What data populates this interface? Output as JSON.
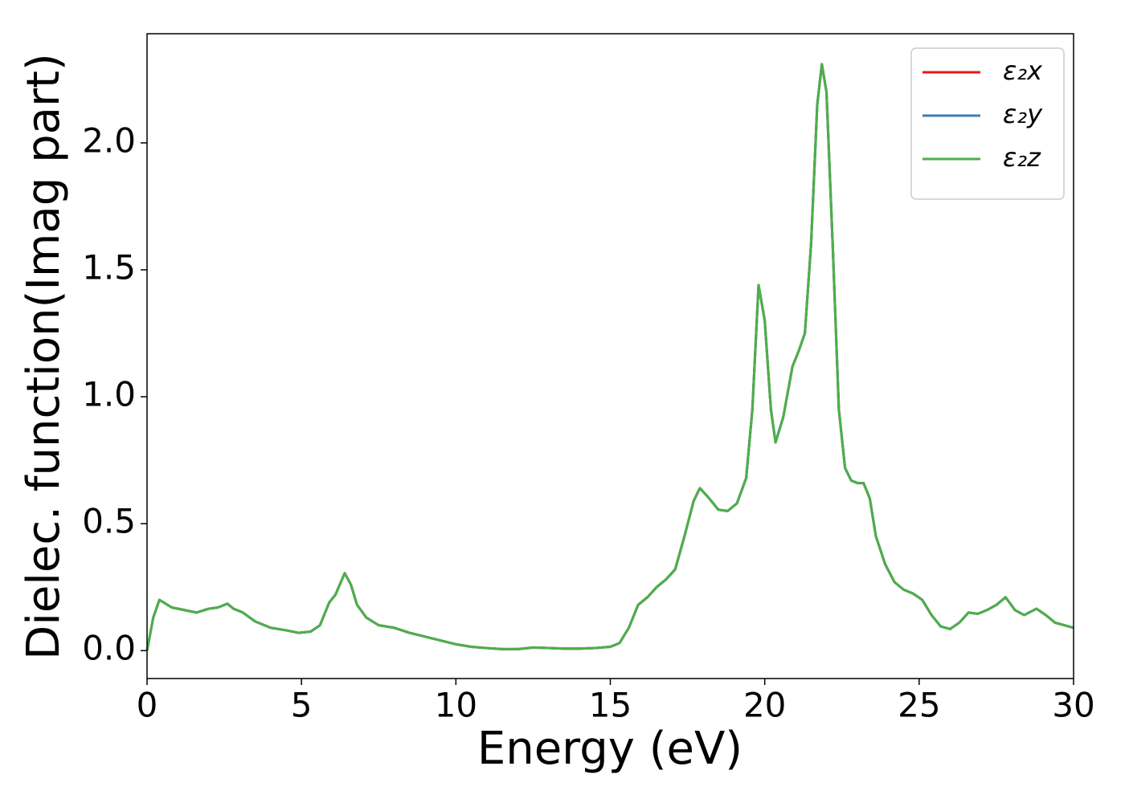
{
  "chart_data": {
    "type": "line",
    "xlabel": "Energy (eV)",
    "ylabel": "Dielec. function(Imag part)",
    "x": [
      0,
      0.2,
      0.4,
      0.6,
      0.8,
      1.2,
      1.6,
      2.0,
      2.3,
      2.6,
      2.8,
      3.1,
      3.5,
      4.0,
      4.5,
      4.9,
      5.3,
      5.6,
      5.9,
      6.1,
      6.4,
      6.6,
      6.8,
      7.1,
      7.5,
      8.0,
      8.5,
      9.0,
      9.5,
      10.0,
      10.5,
      11.0,
      11.5,
      12.0,
      12.5,
      13.0,
      13.5,
      14.0,
      14.5,
      15.0,
      15.3,
      15.6,
      15.9,
      16.2,
      16.5,
      16.8,
      17.1,
      17.4,
      17.7,
      17.9,
      18.2,
      18.5,
      18.8,
      19.1,
      19.4,
      19.6,
      19.8,
      20.0,
      20.2,
      20.35,
      20.6,
      20.9,
      21.1,
      21.3,
      21.5,
      21.7,
      21.85,
      22.0,
      22.2,
      22.4,
      22.6,
      22.8,
      23.0,
      23.2,
      23.4,
      23.6,
      23.9,
      24.2,
      24.5,
      24.8,
      25.1,
      25.4,
      25.7,
      26.0,
      26.3,
      26.6,
      26.9,
      27.2,
      27.5,
      27.8,
      28.1,
      28.4,
      28.8,
      29.1,
      29.4,
      29.7,
      30.0
    ],
    "series": [
      {
        "name": "ε₂x",
        "color": "#e41a1c",
        "values": [
          0.0,
          0.13,
          0.2,
          0.185,
          0.17,
          0.16,
          0.15,
          0.165,
          0.17,
          0.185,
          0.165,
          0.15,
          0.115,
          0.09,
          0.08,
          0.07,
          0.075,
          0.1,
          0.19,
          0.22,
          0.305,
          0.26,
          0.18,
          0.13,
          0.1,
          0.09,
          0.07,
          0.055,
          0.04,
          0.025,
          0.015,
          0.01,
          0.006,
          0.006,
          0.012,
          0.01,
          0.008,
          0.008,
          0.01,
          0.015,
          0.03,
          0.09,
          0.18,
          0.21,
          0.25,
          0.28,
          0.32,
          0.45,
          0.59,
          0.64,
          0.6,
          0.555,
          0.55,
          0.58,
          0.68,
          0.95,
          1.44,
          1.3,
          0.95,
          0.82,
          0.92,
          1.12,
          1.18,
          1.25,
          1.6,
          2.15,
          2.31,
          2.2,
          1.6,
          0.95,
          0.72,
          0.67,
          0.66,
          0.66,
          0.6,
          0.45,
          0.34,
          0.27,
          0.24,
          0.225,
          0.2,
          0.14,
          0.095,
          0.085,
          0.11,
          0.15,
          0.145,
          0.16,
          0.18,
          0.21,
          0.16,
          0.14,
          0.165,
          0.14,
          0.11,
          0.1,
          0.09
        ]
      },
      {
        "name": "ε₂y",
        "color": "#377eb8",
        "values": [
          0.0,
          0.13,
          0.2,
          0.185,
          0.17,
          0.16,
          0.15,
          0.165,
          0.17,
          0.185,
          0.165,
          0.15,
          0.115,
          0.09,
          0.08,
          0.07,
          0.075,
          0.1,
          0.19,
          0.22,
          0.305,
          0.26,
          0.18,
          0.13,
          0.1,
          0.09,
          0.07,
          0.055,
          0.04,
          0.025,
          0.015,
          0.01,
          0.006,
          0.006,
          0.012,
          0.01,
          0.008,
          0.008,
          0.01,
          0.015,
          0.03,
          0.09,
          0.18,
          0.21,
          0.25,
          0.28,
          0.32,
          0.45,
          0.59,
          0.64,
          0.6,
          0.555,
          0.55,
          0.58,
          0.68,
          0.95,
          1.44,
          1.3,
          0.95,
          0.82,
          0.92,
          1.12,
          1.18,
          1.25,
          1.6,
          2.15,
          2.31,
          2.2,
          1.6,
          0.95,
          0.72,
          0.67,
          0.66,
          0.66,
          0.6,
          0.45,
          0.34,
          0.27,
          0.24,
          0.225,
          0.2,
          0.14,
          0.095,
          0.085,
          0.11,
          0.15,
          0.145,
          0.16,
          0.18,
          0.21,
          0.16,
          0.14,
          0.165,
          0.14,
          0.11,
          0.1,
          0.09
        ]
      },
      {
        "name": "ε₂z",
        "color": "#4daf4a",
        "values": [
          0.0,
          0.13,
          0.2,
          0.185,
          0.17,
          0.16,
          0.15,
          0.165,
          0.17,
          0.185,
          0.165,
          0.15,
          0.115,
          0.09,
          0.08,
          0.07,
          0.075,
          0.1,
          0.19,
          0.22,
          0.305,
          0.26,
          0.18,
          0.13,
          0.1,
          0.09,
          0.07,
          0.055,
          0.04,
          0.025,
          0.015,
          0.01,
          0.006,
          0.006,
          0.012,
          0.01,
          0.008,
          0.008,
          0.01,
          0.015,
          0.03,
          0.09,
          0.18,
          0.21,
          0.25,
          0.28,
          0.32,
          0.45,
          0.59,
          0.64,
          0.6,
          0.555,
          0.55,
          0.58,
          0.68,
          0.95,
          1.44,
          1.3,
          0.95,
          0.82,
          0.92,
          1.12,
          1.18,
          1.25,
          1.6,
          2.15,
          2.31,
          2.2,
          1.6,
          0.95,
          0.72,
          0.67,
          0.66,
          0.66,
          0.6,
          0.45,
          0.34,
          0.27,
          0.24,
          0.225,
          0.2,
          0.14,
          0.095,
          0.085,
          0.11,
          0.15,
          0.145,
          0.16,
          0.18,
          0.21,
          0.16,
          0.14,
          0.165,
          0.14,
          0.11,
          0.1,
          0.09
        ]
      }
    ],
    "xlim": [
      0,
      30
    ],
    "xticks": [
      0,
      5,
      10,
      15,
      20,
      25,
      30
    ],
    "ylim": [
      -0.11,
      2.43
    ],
    "yticks": [
      {
        "value": 0,
        "label": "0.0"
      },
      0.5,
      {
        "value": 1,
        "label": "1.0"
      },
      1.5,
      {
        "value": 2,
        "label": "2.0"
      }
    ],
    "grid": false,
    "legend": "upper right"
  }
}
